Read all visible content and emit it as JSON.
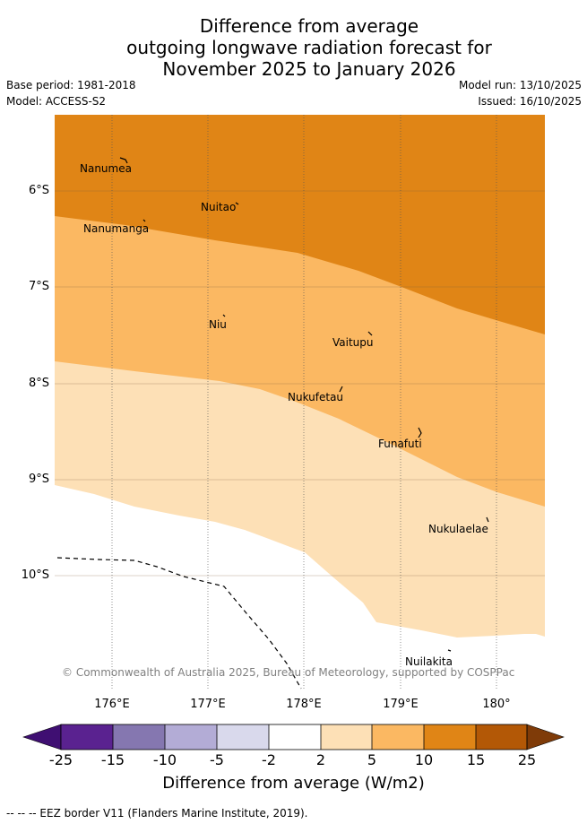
{
  "title": {
    "line1": "Difference from average",
    "line2": "outgoing longwave radiation forecast for",
    "line3": "November 2025 to January 2026"
  },
  "meta": {
    "base_period": "Base period: 1981-2018",
    "model": "Model: ACCESS-S2",
    "model_run": "Model run: 13/10/2025",
    "issued": "Issued: 16/10/2025"
  },
  "map": {
    "lat_labels": [
      "6°S",
      "7°S",
      "8°S",
      "9°S",
      "10°S"
    ],
    "lon_labels": [
      "176°E",
      "177°E",
      "178°E",
      "179°E",
      "180°"
    ],
    "places": [
      "Nanumea",
      "Nuitao",
      "Nanumanga",
      "Niu",
      "Vaitupu",
      "Nukufetau",
      "Funafuti",
      "Nukulaelae",
      "Nuilakita"
    ],
    "copyright": "© Commonwealth of Australia 2025, Bureau of Meteorology, supported by COSPPac"
  },
  "colorbar": {
    "ticks": [
      "-25",
      "-15",
      "-10",
      "-5",
      "-2",
      "2",
      "5",
      "10",
      "15",
      "25"
    ],
    "colors": [
      "#3f0f72",
      "#5a2290",
      "#8577b0",
      "#b3acd6",
      "#d9d9ec",
      "#ffffff",
      "#fde0b6",
      "#fbb862",
      "#e08516",
      "#b35806",
      "#7f3b08"
    ],
    "label": "Difference from average (W/m2)"
  },
  "footnote": "--  --  -- EEZ border V11 (Flanders Marine Institute, 2019)."
}
